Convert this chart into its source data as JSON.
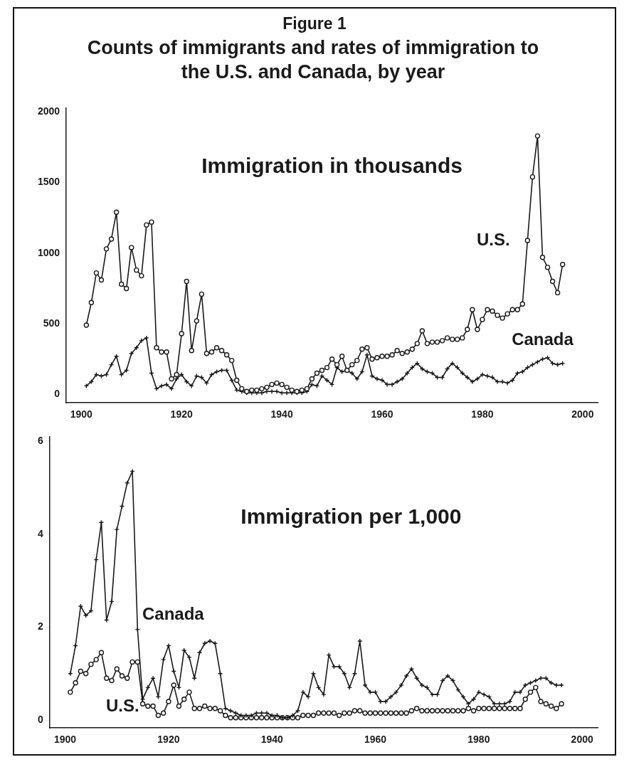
{
  "chart_data": [
    {
      "type": "line",
      "title": "Figure 1",
      "subtitle": "Counts of immigrants and rates of immigration to the U.S. and Canada, by year",
      "annotations": [
        "Immigration in thousands"
      ],
      "x": [
        1901,
        1902,
        1903,
        1904,
        1905,
        1906,
        1907,
        1908,
        1909,
        1910,
        1911,
        1912,
        1913,
        1914,
        1915,
        1916,
        1917,
        1918,
        1919,
        1920,
        1921,
        1922,
        1923,
        1924,
        1925,
        1926,
        1927,
        1928,
        1929,
        1930,
        1931,
        1932,
        1933,
        1934,
        1935,
        1936,
        1937,
        1938,
        1939,
        1940,
        1941,
        1942,
        1943,
        1944,
        1945,
        1946,
        1947,
        1948,
        1949,
        1950,
        1951,
        1952,
        1953,
        1954,
        1955,
        1956,
        1957,
        1958,
        1959,
        1960,
        1961,
        1962,
        1963,
        1964,
        1965,
        1966,
        1967,
        1968,
        1969,
        1970,
        1971,
        1972,
        1973,
        1974,
        1975,
        1976,
        1977,
        1978,
        1979,
        1980,
        1981,
        1982,
        1983,
        1984,
        1985,
        1986,
        1987,
        1988,
        1989,
        1990,
        1991,
        1992,
        1993,
        1994,
        1995,
        1996
      ],
      "series": [
        {
          "name": "U.S.",
          "color": "#1a1a1a",
          "marker": "circle",
          "values": [
            490,
            650,
            860,
            810,
            1030,
            1100,
            1290,
            780,
            750,
            1040,
            880,
            840,
            1200,
            1220,
            330,
            300,
            300,
            110,
            140,
            430,
            800,
            310,
            520,
            710,
            290,
            300,
            330,
            310,
            280,
            240,
            100,
            40,
            20,
            30,
            30,
            40,
            50,
            70,
            80,
            70,
            50,
            30,
            20,
            30,
            40,
            110,
            150,
            170,
            190,
            250,
            210,
            270,
            170,
            210,
            240,
            320,
            330,
            250,
            260,
            270,
            270,
            280,
            310,
            290,
            300,
            320,
            360,
            450,
            360,
            370,
            370,
            380,
            400,
            390,
            390,
            400,
            460,
            600,
            460,
            530,
            600,
            590,
            560,
            540,
            570,
            600,
            600,
            640,
            1090,
            1540,
            1830,
            970,
            900,
            800,
            720,
            920
          ]
        },
        {
          "name": "Canada",
          "color": "#1a1a1a",
          "marker": "cross",
          "values": [
            60,
            90,
            140,
            130,
            140,
            210,
            270,
            140,
            170,
            290,
            330,
            380,
            400,
            150,
            40,
            60,
            70,
            40,
            110,
            140,
            90,
            60,
            130,
            120,
            80,
            140,
            160,
            170,
            170,
            100,
            30,
            20,
            10,
            10,
            10,
            10,
            20,
            20,
            20,
            10,
            10,
            10,
            10,
            10,
            20,
            70,
            60,
            130,
            100,
            70,
            190,
            160,
            170,
            150,
            110,
            160,
            280,
            130,
            110,
            100,
            70,
            70,
            90,
            110,
            150,
            190,
            220,
            180,
            160,
            150,
            120,
            120,
            180,
            220,
            190,
            150,
            120,
            90,
            110,
            140,
            130,
            120,
            90,
            90,
            80,
            100,
            150,
            160,
            190,
            210,
            230,
            250,
            260,
            220,
            210,
            220
          ]
        }
      ],
      "xlim": [
        1897,
        2003
      ],
      "xticks": [
        1900,
        1920,
        1940,
        1960,
        1980,
        2000
      ],
      "ylim": [
        -60,
        2030
      ],
      "yticks": [
        0,
        500,
        1000,
        1500,
        2000
      ],
      "grid": false,
      "legend": false
    },
    {
      "type": "line",
      "annotations": [
        "Immigration per 1,000"
      ],
      "x": [
        1901,
        1902,
        1903,
        1904,
        1905,
        1906,
        1907,
        1908,
        1909,
        1910,
        1911,
        1912,
        1913,
        1914,
        1915,
        1916,
        1917,
        1918,
        1919,
        1920,
        1921,
        1922,
        1923,
        1924,
        1925,
        1926,
        1927,
        1928,
        1929,
        1930,
        1931,
        1932,
        1933,
        1934,
        1935,
        1936,
        1937,
        1938,
        1939,
        1940,
        1941,
        1942,
        1943,
        1944,
        1945,
        1946,
        1947,
        1948,
        1949,
        1950,
        1951,
        1952,
        1953,
        1954,
        1955,
        1956,
        1957,
        1958,
        1959,
        1960,
        1961,
        1962,
        1963,
        1964,
        1965,
        1966,
        1967,
        1968,
        1969,
        1970,
        1971,
        1972,
        1973,
        1974,
        1975,
        1976,
        1977,
        1978,
        1979,
        1980,
        1981,
        1982,
        1983,
        1984,
        1985,
        1986,
        1987,
        1988,
        1989,
        1990,
        1991,
        1992,
        1993,
        1994,
        1995,
        1996
      ],
      "series": [
        {
          "name": "Canada",
          "color": "#1a1a1a",
          "marker": "cross",
          "values": [
            1.0,
            1.6,
            2.45,
            2.25,
            2.35,
            3.45,
            4.25,
            2.15,
            2.55,
            4.1,
            4.6,
            5.1,
            5.35,
            1.95,
            0.45,
            0.7,
            0.9,
            0.5,
            1.3,
            1.6,
            1.05,
            0.7,
            1.5,
            1.35,
            0.9,
            1.45,
            1.65,
            1.7,
            1.65,
            1.0,
            0.25,
            0.2,
            0.15,
            0.1,
            0.1,
            0.1,
            0.15,
            0.15,
            0.15,
            0.1,
            0.1,
            0.05,
            0.05,
            0.1,
            0.2,
            0.6,
            0.5,
            1.0,
            0.7,
            0.55,
            1.4,
            1.15,
            1.15,
            1.0,
            0.7,
            1.0,
            1.7,
            0.75,
            0.6,
            0.6,
            0.4,
            0.4,
            0.5,
            0.6,
            0.75,
            0.95,
            1.1,
            0.9,
            0.75,
            0.7,
            0.55,
            0.55,
            0.85,
            0.95,
            0.85,
            0.65,
            0.5,
            0.35,
            0.45,
            0.6,
            0.55,
            0.5,
            0.35,
            0.35,
            0.35,
            0.4,
            0.6,
            0.6,
            0.75,
            0.8,
            0.85,
            0.9,
            0.9,
            0.8,
            0.75,
            0.75
          ]
        },
        {
          "name": "U.S.",
          "color": "#1a1a1a",
          "marker": "circle",
          "values": [
            0.6,
            0.8,
            1.05,
            1.0,
            1.2,
            1.3,
            1.45,
            0.9,
            0.85,
            1.1,
            0.95,
            0.9,
            1.25,
            1.25,
            0.35,
            0.3,
            0.3,
            0.1,
            0.15,
            0.4,
            0.75,
            0.3,
            0.45,
            0.6,
            0.25,
            0.25,
            0.3,
            0.25,
            0.25,
            0.2,
            0.1,
            0.05,
            0.05,
            0.05,
            0.05,
            0.05,
            0.05,
            0.05,
            0.05,
            0.05,
            0.05,
            0.05,
            0.05,
            0.05,
            0.05,
            0.1,
            0.1,
            0.1,
            0.15,
            0.15,
            0.15,
            0.15,
            0.1,
            0.15,
            0.15,
            0.2,
            0.2,
            0.15,
            0.15,
            0.15,
            0.15,
            0.15,
            0.15,
            0.15,
            0.15,
            0.15,
            0.2,
            0.25,
            0.2,
            0.2,
            0.2,
            0.2,
            0.2,
            0.2,
            0.2,
            0.2,
            0.2,
            0.25,
            0.2,
            0.25,
            0.25,
            0.25,
            0.25,
            0.25,
            0.25,
            0.25,
            0.25,
            0.25,
            0.45,
            0.6,
            0.7,
            0.4,
            0.35,
            0.3,
            0.25,
            0.35
          ]
        }
      ],
      "xlim": [
        1897,
        2003
      ],
      "xticks": [
        1900,
        1920,
        1940,
        1960,
        1980,
        2000
      ],
      "ylim": [
        -0.17,
        6.1
      ],
      "yticks": [
        0,
        2,
        4,
        6
      ],
      "grid": false,
      "legend": false
    }
  ]
}
